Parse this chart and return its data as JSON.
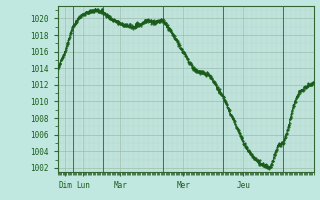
{
  "background_color": "#c0e8e0",
  "plot_bg_color": "#c0e8e0",
  "line_color": "#1a5c1a",
  "marker_color": "#1a5c1a",
  "grid_color_major": "#9ab8a8",
  "grid_color_minor": "#b8d4c8",
  "ylim": [
    1001.5,
    1021.5
  ],
  "yticks": [
    1002,
    1004,
    1006,
    1008,
    1010,
    1012,
    1014,
    1016,
    1018,
    1020
  ],
  "ylabel_color": "#1a5c1a",
  "xlabel_color": "#1a5c1a",
  "day_labels": [
    "Dim",
    "Lun",
    "Mar",
    "Mer",
    "Jeu"
  ],
  "vline_positions": [
    12,
    36,
    84,
    132,
    180
  ],
  "total_hours": 204,
  "ctrl_hours": [
    0,
    6,
    12,
    18,
    24,
    30,
    36,
    42,
    48,
    54,
    60,
    66,
    72,
    78,
    84,
    90,
    96,
    102,
    108,
    112,
    116,
    120,
    126,
    132,
    138,
    144,
    150,
    155,
    158,
    162,
    166,
    168,
    170,
    173,
    176,
    178,
    180,
    184,
    188,
    192,
    196,
    200,
    204
  ],
  "ctrl_pres": [
    1014.0,
    1016.0,
    1019.0,
    1020.3,
    1020.8,
    1021.0,
    1020.8,
    1020.0,
    1019.5,
    1019.2,
    1019.0,
    1019.3,
    1019.8,
    1019.5,
    1019.8,
    1018.5,
    1017.0,
    1015.5,
    1014.0,
    1013.6,
    1013.4,
    1013.3,
    1012.0,
    1010.5,
    1008.5,
    1006.5,
    1004.5,
    1003.5,
    1003.0,
    1002.5,
    1002.2,
    1002.0,
    1002.3,
    1003.5,
    1004.8,
    1005.0,
    1005.0,
    1007.0,
    1009.5,
    1011.0,
    1011.5,
    1012.0,
    1012.2
  ]
}
